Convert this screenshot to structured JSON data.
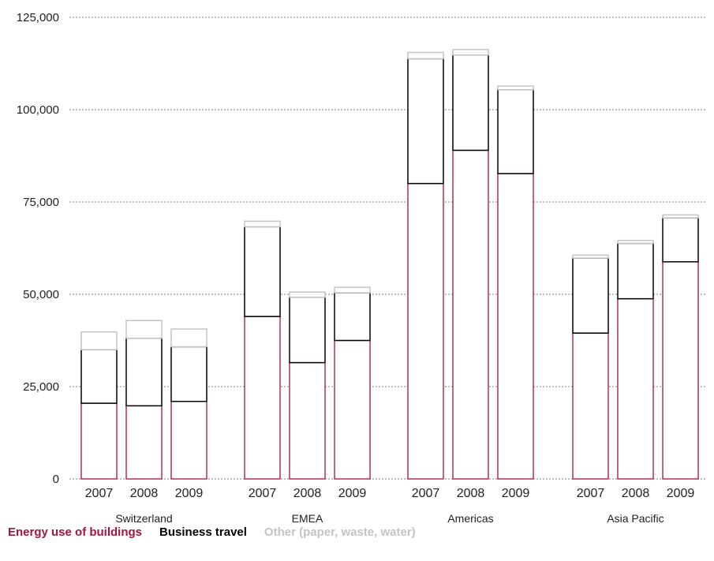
{
  "chart_data": {
    "type": "bar",
    "stacked": true,
    "groups": [
      "Switzerland",
      "EMEA",
      "Americas",
      "Asia Pacific"
    ],
    "categories": [
      "2007",
      "2008",
      "2009"
    ],
    "ylim": [
      0,
      125000
    ],
    "yticks": [
      "0",
      "25,000",
      "50,000",
      "75,000",
      "100,000",
      "125,000"
    ],
    "grid": true,
    "series": [
      {
        "name": "Energy use of buildings",
        "color": "#a6133c",
        "values": [
          [
            20500,
            19800,
            21000
          ],
          [
            44000,
            31500,
            37500
          ],
          [
            80000,
            89000,
            82700
          ],
          [
            39500,
            48800,
            58800
          ]
        ]
      },
      {
        "name": "Business travel",
        "color": "#000000",
        "values": [
          [
            14500,
            18300,
            14800
          ],
          [
            24300,
            17700,
            12900
          ],
          [
            33800,
            25800,
            22700
          ],
          [
            20300,
            15000,
            11900
          ]
        ]
      },
      {
        "name": "Other (paper, waste, water)",
        "color": "#c4c4c4",
        "values": [
          [
            4800,
            4800,
            4800
          ],
          [
            1500,
            1400,
            1500
          ],
          [
            1700,
            1500,
            1000
          ],
          [
            800,
            800,
            800
          ]
        ]
      }
    ]
  }
}
